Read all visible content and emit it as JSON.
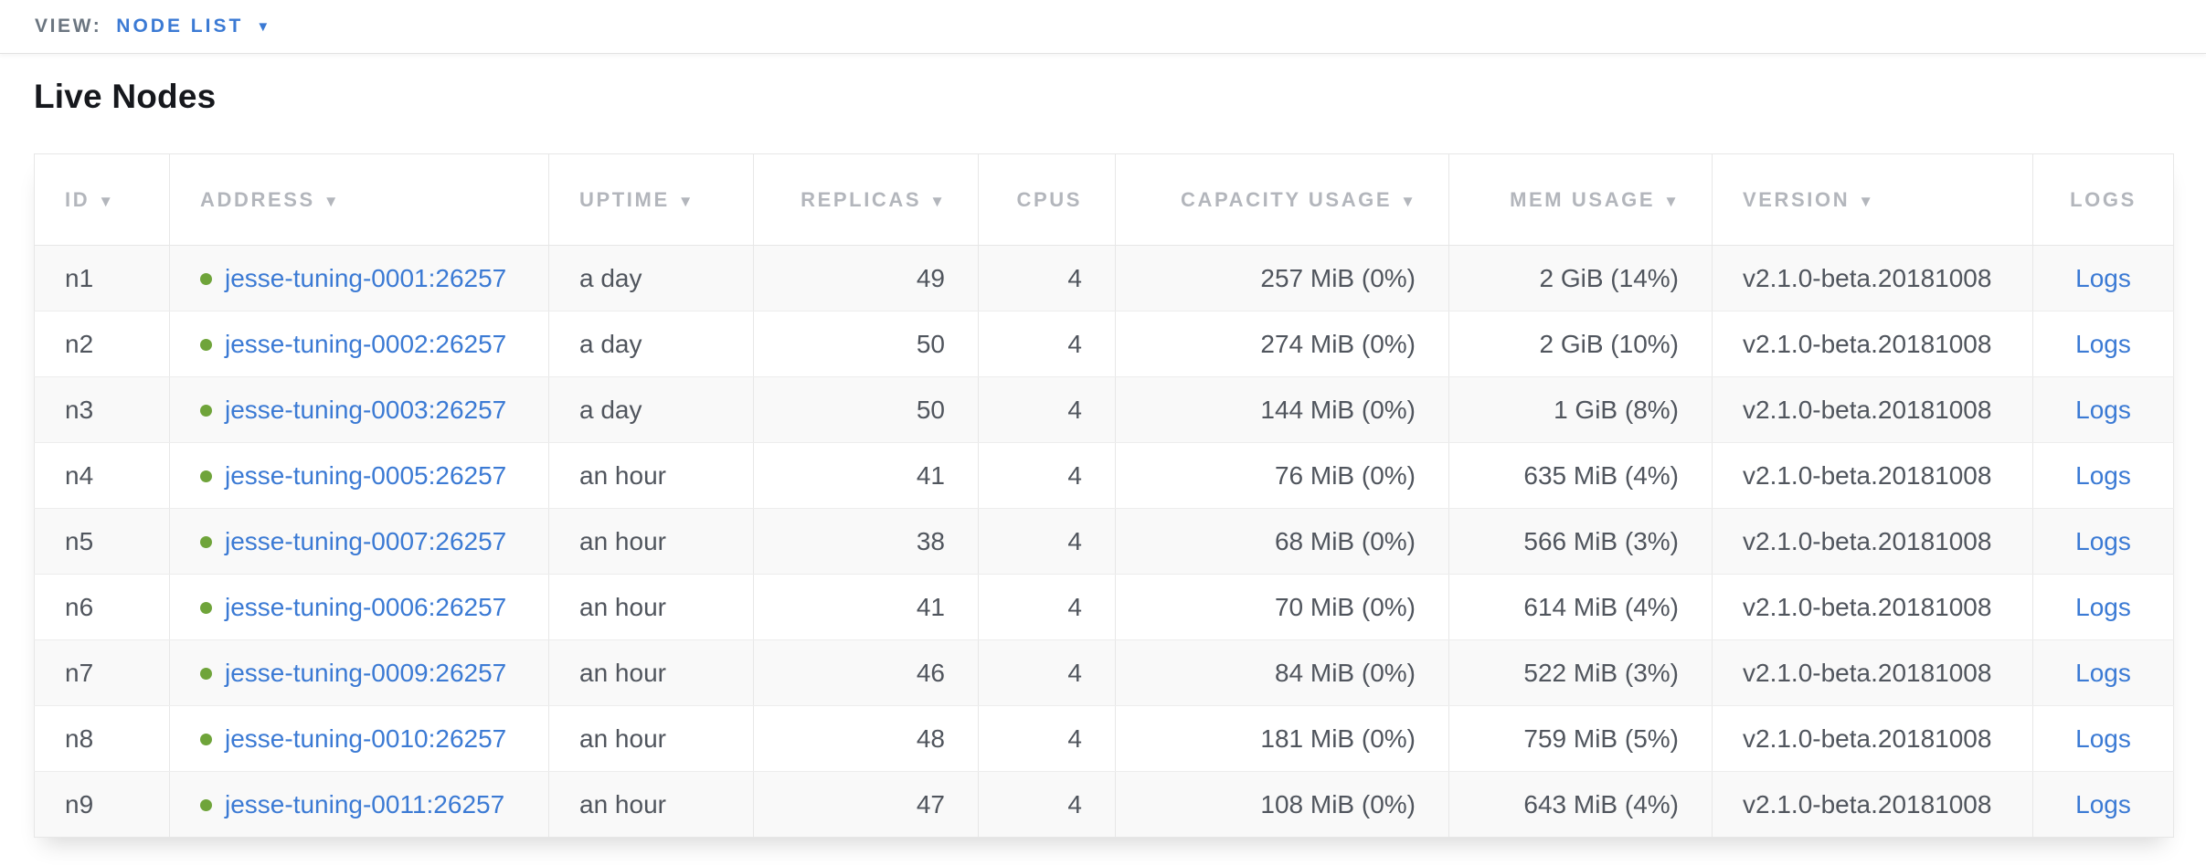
{
  "colors": {
    "link_blue": "#3b7ad4",
    "status_green": "#6fa43a",
    "header_text": "#b3b6bc",
    "cell_text": "#50555d",
    "toolbar_label": "#6b7580",
    "row_stripe": "#f9f9f9",
    "border": "#e7e7e7",
    "title_text": "#16181d"
  },
  "toolbar": {
    "view_label": "VIEW:",
    "view_value": "NODE LIST",
    "dropdown_icon": "▼"
  },
  "page": {
    "title": "Live Nodes"
  },
  "table": {
    "columns": [
      {
        "key": "id",
        "label": "ID",
        "sort_icon": "▼"
      },
      {
        "key": "address",
        "label": "ADDRESS",
        "sort_icon": "▼"
      },
      {
        "key": "uptime",
        "label": "UPTIME",
        "sort_icon": "▼"
      },
      {
        "key": "replicas",
        "label": "REPLICAS",
        "sort_icon": "▼"
      },
      {
        "key": "cpus",
        "label": "CPUS",
        "sort_icon": ""
      },
      {
        "key": "capacity",
        "label": "CAPACITY USAGE",
        "sort_icon": "▼"
      },
      {
        "key": "mem",
        "label": "MEM USAGE",
        "sort_icon": "▼"
      },
      {
        "key": "version",
        "label": "VERSION",
        "sort_icon": "▼"
      },
      {
        "key": "logs",
        "label": "LOGS",
        "sort_icon": ""
      }
    ],
    "rows": [
      {
        "id": "n1",
        "address": "jesse-tuning-0001:26257",
        "uptime": "a day",
        "replicas": "49",
        "cpus": "4",
        "capacity": "257 MiB (0%)",
        "mem": "2 GiB (14%)",
        "version": "v2.1.0-beta.20181008",
        "logs": "Logs"
      },
      {
        "id": "n2",
        "address": "jesse-tuning-0002:26257",
        "uptime": "a day",
        "replicas": "50",
        "cpus": "4",
        "capacity": "274 MiB (0%)",
        "mem": "2 GiB (10%)",
        "version": "v2.1.0-beta.20181008",
        "logs": "Logs"
      },
      {
        "id": "n3",
        "address": "jesse-tuning-0003:26257",
        "uptime": "a day",
        "replicas": "50",
        "cpus": "4",
        "capacity": "144 MiB (0%)",
        "mem": "1 GiB (8%)",
        "version": "v2.1.0-beta.20181008",
        "logs": "Logs"
      },
      {
        "id": "n4",
        "address": "jesse-tuning-0005:26257",
        "uptime": "an hour",
        "replicas": "41",
        "cpus": "4",
        "capacity": "76 MiB (0%)",
        "mem": "635 MiB (4%)",
        "version": "v2.1.0-beta.20181008",
        "logs": "Logs"
      },
      {
        "id": "n5",
        "address": "jesse-tuning-0007:26257",
        "uptime": "an hour",
        "replicas": "38",
        "cpus": "4",
        "capacity": "68 MiB (0%)",
        "mem": "566 MiB (3%)",
        "version": "v2.1.0-beta.20181008",
        "logs": "Logs"
      },
      {
        "id": "n6",
        "address": "jesse-tuning-0006:26257",
        "uptime": "an hour",
        "replicas": "41",
        "cpus": "4",
        "capacity": "70 MiB (0%)",
        "mem": "614 MiB (4%)",
        "version": "v2.1.0-beta.20181008",
        "logs": "Logs"
      },
      {
        "id": "n7",
        "address": "jesse-tuning-0009:26257",
        "uptime": "an hour",
        "replicas": "46",
        "cpus": "4",
        "capacity": "84 MiB (0%)",
        "mem": "522 MiB (3%)",
        "version": "v2.1.0-beta.20181008",
        "logs": "Logs"
      },
      {
        "id": "n8",
        "address": "jesse-tuning-0010:26257",
        "uptime": "an hour",
        "replicas": "48",
        "cpus": "4",
        "capacity": "181 MiB (0%)",
        "mem": "759 MiB (5%)",
        "version": "v2.1.0-beta.20181008",
        "logs": "Logs"
      },
      {
        "id": "n9",
        "address": "jesse-tuning-0011:26257",
        "uptime": "an hour",
        "replicas": "47",
        "cpus": "4",
        "capacity": "108 MiB (0%)",
        "mem": "643 MiB (4%)",
        "version": "v2.1.0-beta.20181008",
        "logs": "Logs"
      }
    ]
  }
}
